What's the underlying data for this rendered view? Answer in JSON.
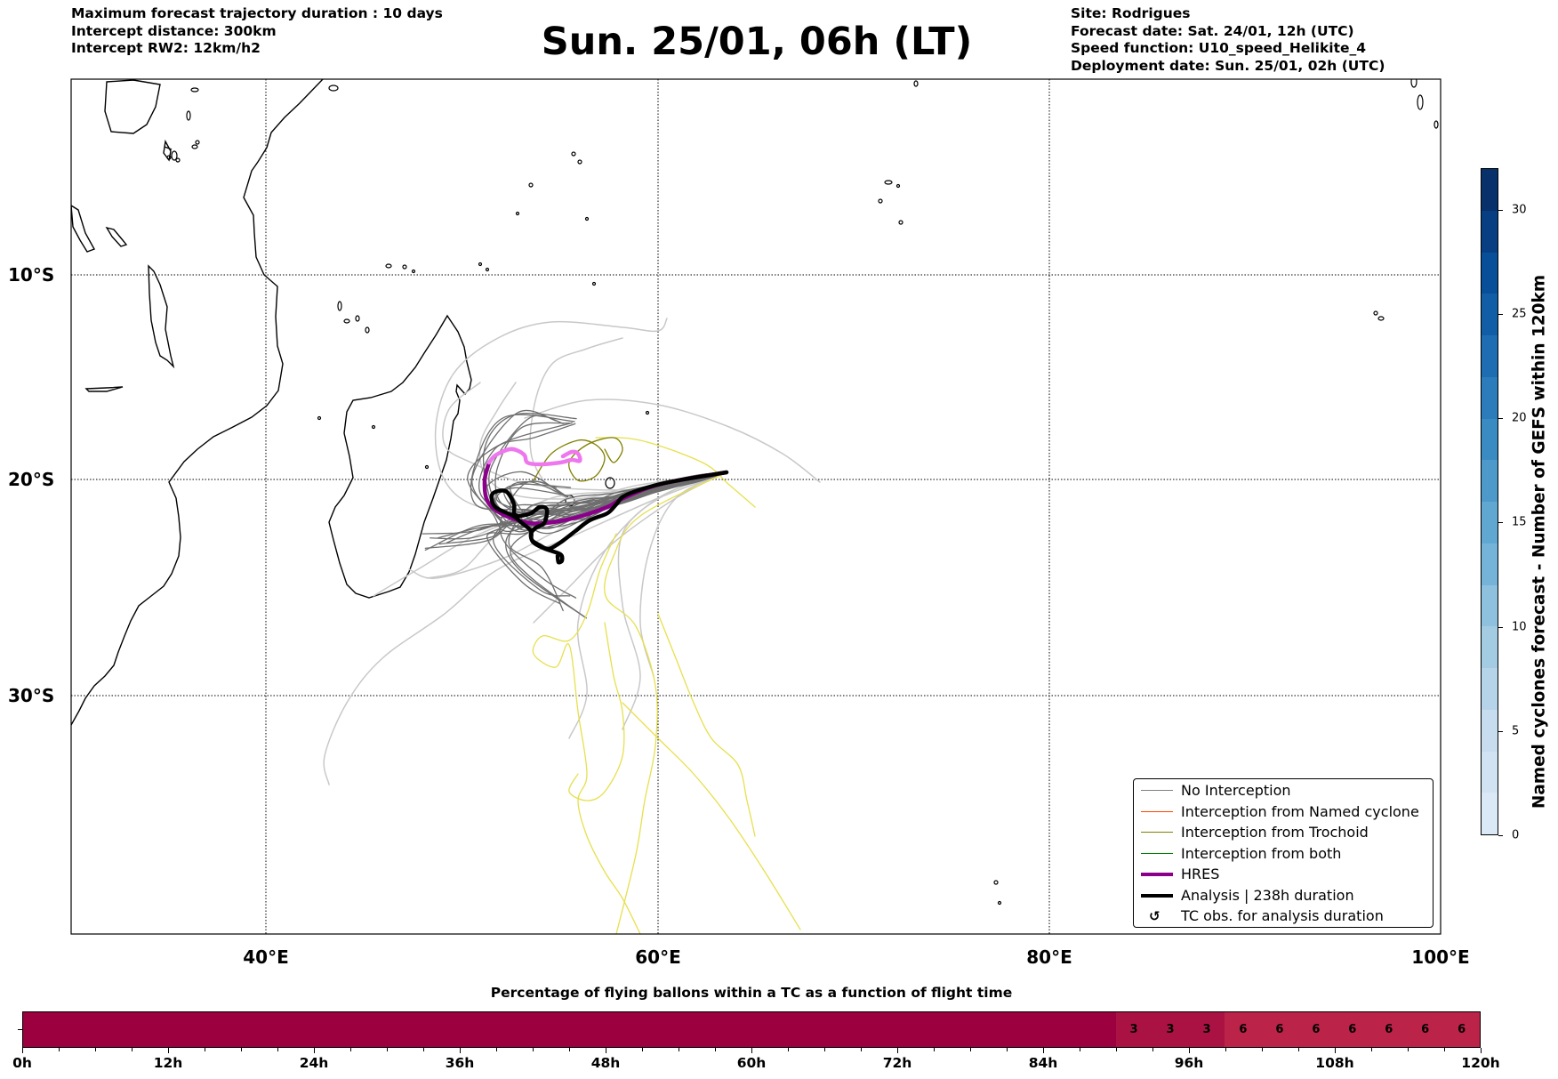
{
  "header": {
    "left": [
      "Maximum forecast trajectory duration : 10 days",
      "Intercept distance: 300km",
      "Intercept RW2: 12km/h2"
    ],
    "title": "Sun. 25/01, 06h (LT)",
    "right": [
      "Site: Rodrigues",
      "Forecast date: Sat. 24/01, 12h (UTC)",
      "Speed function: U10_speed_Helikite_4",
      "Deployment date: Sun. 25/01, 02h (UTC)"
    ]
  },
  "chart_data": [
    {
      "type": "map-trajectories",
      "x_ticks": [
        "40°E",
        "60°E",
        "80°E",
        "100°E"
      ],
      "y_ticks": [
        "10°S",
        "20°S",
        "30°S"
      ],
      "lon_range": [
        30,
        100
      ],
      "lat_range": [
        -41,
        0
      ],
      "grid": true,
      "legend_placement": "bottom-right",
      "legend": [
        {
          "label": "No Interception",
          "color": "#808080",
          "kind": "thin"
        },
        {
          "label": "Interception from Named cyclone",
          "color": "#ff4500",
          "kind": "thin"
        },
        {
          "label": "Interception from Trochoid",
          "color": "#808000",
          "kind": "thin"
        },
        {
          "label": "Interception from both",
          "color": "#008000",
          "kind": "thin"
        },
        {
          "label": "HRES",
          "color": "#8b008b",
          "kind": "thick"
        },
        {
          "label": "Analysis | 238h duration",
          "color": "#000000",
          "kind": "thick"
        },
        {
          "label": "TC obs. for analysis duration",
          "symbol": "↺",
          "kind": "symbol"
        }
      ],
      "colorbar": {
        "label": "Named cyclones forecast - Number of GEFS within 120km",
        "range": [
          0,
          32
        ],
        "ticks": [
          "0",
          "5",
          "10",
          "15",
          "20",
          "25",
          "30"
        ],
        "tick_values": [
          0,
          5,
          10,
          15,
          20,
          25,
          30
        ],
        "colors": [
          "#dbe9f6",
          "#c6dbef",
          "#9ecae1",
          "#6baed6",
          "#4292c6",
          "#2171b5",
          "#08519c",
          "#08306b"
        ]
      }
    },
    {
      "type": "heatmap",
      "title": "Percentage of flying ballons within a TC as a function of flight time",
      "tick_labels": [
        "0h",
        "12h",
        "24h",
        "36h",
        "48h",
        "60h",
        "72h",
        "84h",
        "96h",
        "108h",
        "120h"
      ],
      "bin_hours": 3,
      "values": [
        0,
        0,
        0,
        0,
        0,
        0,
        0,
        0,
        0,
        0,
        0,
        0,
        0,
        0,
        0,
        0,
        0,
        0,
        0,
        0,
        0,
        0,
        0,
        0,
        0,
        0,
        0,
        0,
        0,
        0,
        3,
        3,
        3,
        6,
        6,
        6,
        6,
        6,
        6,
        6
      ],
      "colors": {
        "0": "#9c003f",
        "3": "#ab1244",
        "6": "#bb2349"
      }
    }
  ]
}
